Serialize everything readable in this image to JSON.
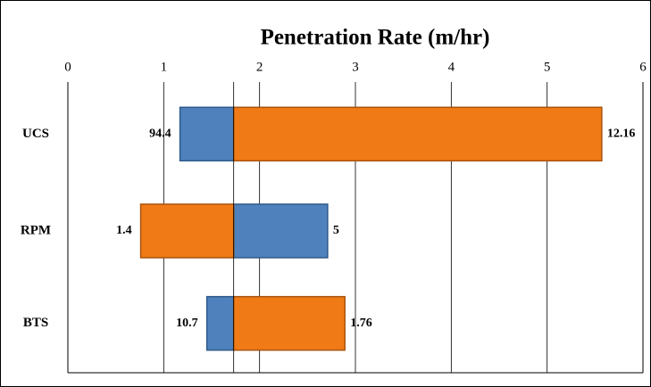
{
  "chart_data": {
    "type": "tornado",
    "title": "Penetration Rate (m/hr)",
    "categories": [
      "UCS",
      "RPM",
      "BTS"
    ],
    "base": 1.73,
    "series": [
      {
        "color": "#4f81bd",
        "values": [
          1.17,
          2.71,
          1.45
        ],
        "end_labels": [
          "94.4",
          "5",
          "10.7"
        ]
      },
      {
        "color": "#f07b16",
        "values": [
          5.57,
          0.76,
          2.89
        ],
        "end_labels": [
          "12.16",
          "1.4",
          "1.76"
        ]
      }
    ],
    "xlim": [
      0,
      6
    ],
    "xticks": [
      0,
      1,
      2,
      3,
      4,
      5,
      6
    ],
    "grid": true
  }
}
